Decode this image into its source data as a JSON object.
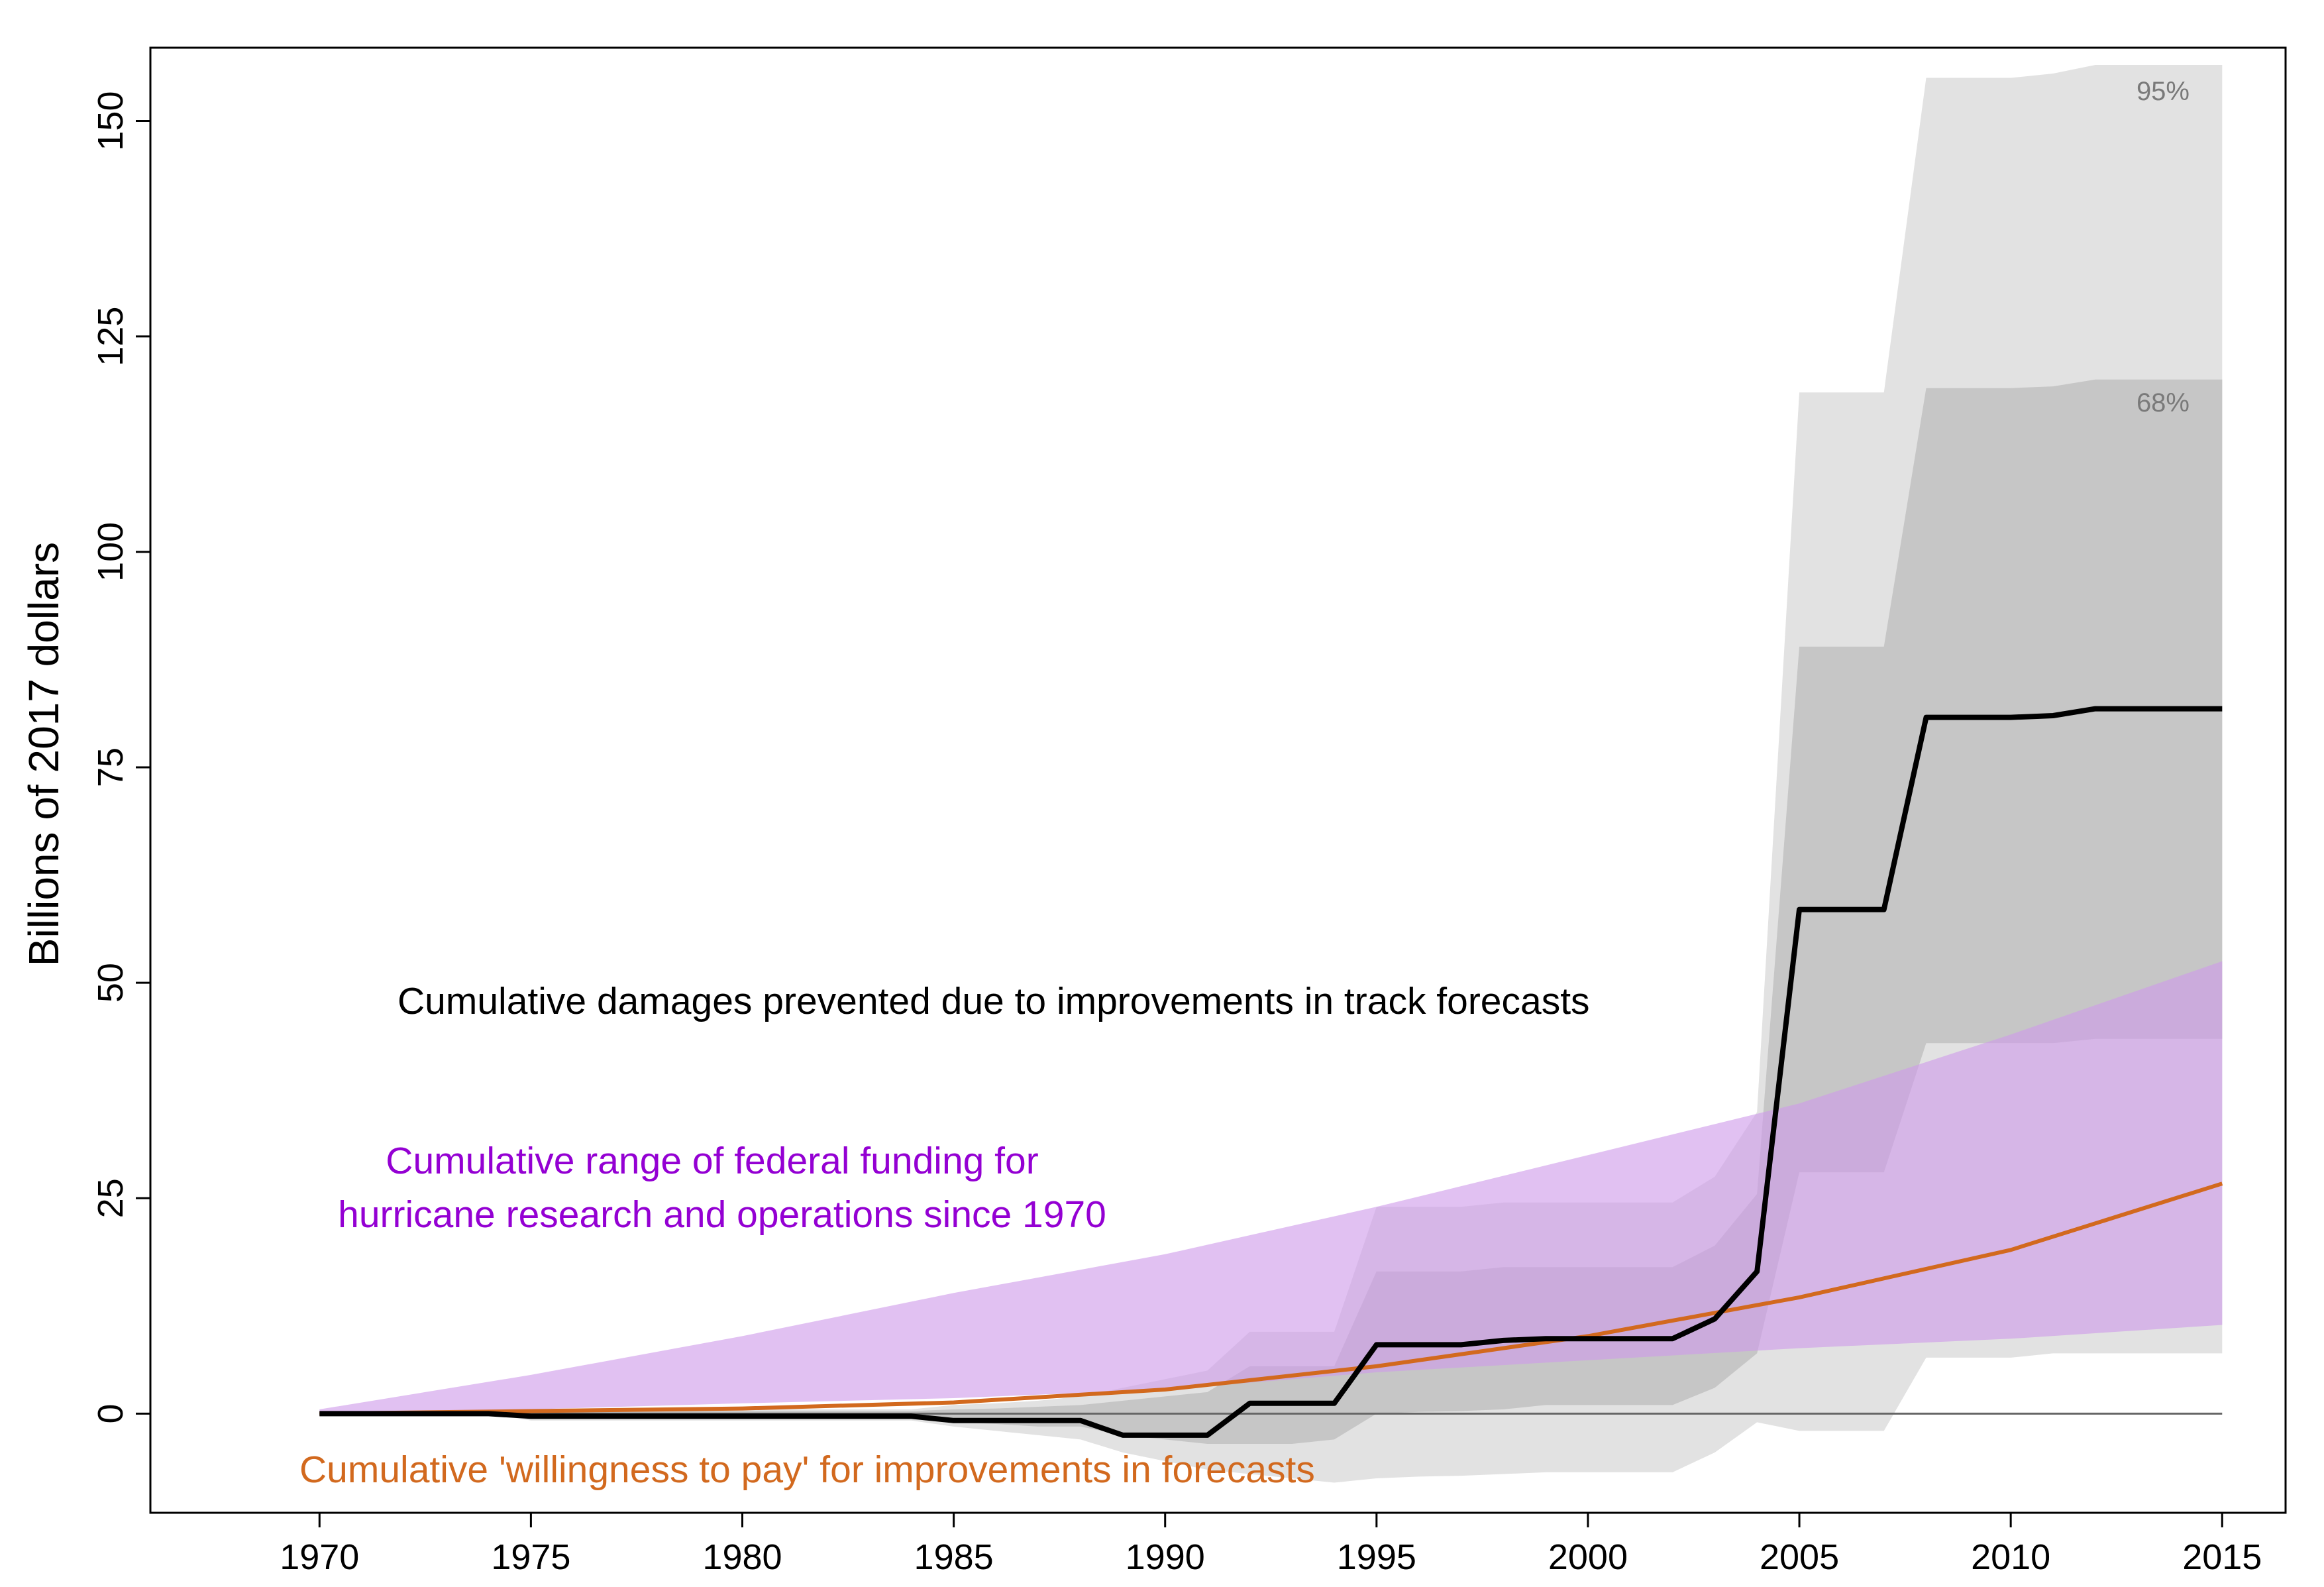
{
  "chart_data": {
    "type": "area",
    "title": "",
    "xlabel": "",
    "ylabel": "Billions of 2017 dollars",
    "xlim": [
      1966,
      2016.5
    ],
    "ylim": [
      -11.5,
      158.5
    ],
    "x_ticks": [
      1970,
      1975,
      1980,
      1985,
      1990,
      1995,
      2000,
      2005,
      2010,
      2015
    ],
    "y_ticks": [
      0,
      25,
      50,
      75,
      100,
      125,
      150
    ],
    "zero_line": true,
    "grid": false,
    "annotations": {
      "damages": "Cumulative damages prevented due to improvements in track forecasts",
      "funding_line1": "Cumulative range of federal funding for",
      "funding_line2": "hurricane research and operations since 1970",
      "willingness": "Cumulative 'willingness to pay' for improvements in forecasts",
      "band95": "95%",
      "band68": "68%"
    },
    "colors": {
      "band95": "#e2e2e2",
      "band68": "#c6c6c6",
      "damages": "#000000",
      "funding": "#cf9bea",
      "funding_text": "#9400d3",
      "willingness": "#d2691e",
      "zero_line": "#666666"
    },
    "series": [
      {
        "name": "95% interval",
        "kind": "band_step",
        "x": [
          1970,
          1971,
          1972,
          1973,
          1974,
          1975,
          1976,
          1977,
          1978,
          1979,
          1980,
          1981,
          1982,
          1983,
          1984,
          1985,
          1986,
          1987,
          1988,
          1989,
          1990,
          1991,
          1992,
          1993,
          1994,
          1995,
          1996,
          1997,
          1998,
          1999,
          2000,
          2001,
          2002,
          2003,
          2004,
          2005,
          2006,
          2007,
          2008,
          2009,
          2010,
          2011,
          2012,
          2013,
          2014,
          2015
        ],
        "lower": [
          0,
          0,
          0,
          0,
          0,
          -0.8,
          -0.8,
          -0.8,
          -0.8,
          -0.8,
          -0.8,
          -0.8,
          -0.8,
          -0.8,
          -0.8,
          -1.5,
          -2,
          -2.5,
          -3,
          -4.5,
          -5.5,
          -6.5,
          -7,
          -7.5,
          -8,
          -7.5,
          -7.3,
          -7.2,
          -7,
          -6.8,
          -6.8,
          -6.8,
          -6.8,
          -4.5,
          -1,
          -2,
          -2,
          -2,
          6.5,
          6.5,
          6.5,
          7,
          7,
          7,
          7,
          7
        ],
        "upper": [
          0,
          0,
          0,
          0,
          0,
          0.5,
          0.5,
          0.5,
          0.5,
          0.5,
          0.5,
          0.5,
          0.5,
          0.5,
          0.5,
          1,
          1.2,
          1.5,
          2,
          3,
          4,
          5,
          9.5,
          9.5,
          9.5,
          24,
          24,
          24,
          24.5,
          24.5,
          24.5,
          24.5,
          24.5,
          27.5,
          35,
          118.5,
          118.5,
          118.5,
          155,
          155,
          155,
          155.5,
          156.5,
          156.5,
          156.5,
          156.5
        ]
      },
      {
        "name": "68% interval",
        "kind": "band_step",
        "x": [
          1970,
          1971,
          1972,
          1973,
          1974,
          1975,
          1976,
          1977,
          1978,
          1979,
          1980,
          1981,
          1982,
          1983,
          1984,
          1985,
          1986,
          1987,
          1988,
          1989,
          1990,
          1991,
          1992,
          1993,
          1994,
          1995,
          1996,
          1997,
          1998,
          1999,
          2000,
          2001,
          2002,
          2003,
          2004,
          2005,
          2006,
          2007,
          2008,
          2009,
          2010,
          2011,
          2012,
          2013,
          2014,
          2015
        ],
        "lower": [
          0,
          0,
          0,
          0,
          0,
          -0.5,
          -0.5,
          -0.5,
          -0.5,
          -0.5,
          -0.5,
          -0.5,
          -0.5,
          -0.5,
          -0.5,
          -1,
          -1.2,
          -1.5,
          -1.5,
          -2.5,
          -3,
          -3.5,
          -3.5,
          -3.5,
          -3,
          0,
          0.2,
          0.3,
          0.5,
          1,
          1,
          1,
          1,
          3,
          7,
          28,
          28,
          28,
          43,
          43,
          43,
          43,
          43.5,
          43.5,
          43.5,
          43.5
        ],
        "upper": [
          0,
          0,
          0,
          0,
          0,
          0.3,
          0.3,
          0.3,
          0.3,
          0.3,
          0.3,
          0.3,
          0.3,
          0.3,
          0.3,
          0.5,
          0.6,
          0.8,
          1,
          1.5,
          2,
          2.5,
          5.5,
          5.5,
          5.5,
          16.5,
          16.5,
          16.5,
          17,
          17,
          17,
          17,
          17,
          19.5,
          25.5,
          89,
          89,
          89,
          119,
          119,
          119,
          119.2,
          120,
          120,
          120,
          120
        ]
      },
      {
        "name": "Cumulative damages prevented",
        "kind": "line",
        "x": [
          1970,
          1971,
          1972,
          1973,
          1974,
          1975,
          1976,
          1977,
          1978,
          1979,
          1980,
          1981,
          1982,
          1983,
          1984,
          1985,
          1986,
          1987,
          1988,
          1989,
          1990,
          1991,
          1992,
          1993,
          1994,
          1995,
          1996,
          1997,
          1998,
          1999,
          2000,
          2001,
          2002,
          2003,
          2004,
          2005,
          2006,
          2007,
          2008,
          2009,
          2010,
          2011,
          2012,
          2013,
          2014,
          2015
        ],
        "values": [
          0,
          0,
          0,
          0,
          0,
          -0.3,
          -0.3,
          -0.3,
          -0.3,
          -0.3,
          -0.3,
          -0.3,
          -0.3,
          -0.3,
          -0.3,
          -0.8,
          -0.8,
          -0.8,
          -0.8,
          -2.5,
          -2.5,
          -2.5,
          1.2,
          1.2,
          1.2,
          8,
          8,
          8,
          8.5,
          8.7,
          8.7,
          8.7,
          8.7,
          11,
          16.5,
          58.5,
          58.5,
          58.5,
          80.8,
          80.8,
          80.8,
          81,
          81.8,
          81.8,
          81.8,
          81.8
        ]
      },
      {
        "name": "Cumulative federal funding range",
        "kind": "band",
        "x": [
          1970,
          1975,
          1980,
          1985,
          1990,
          1995,
          2000,
          2005,
          2010,
          2015
        ],
        "lower": [
          0,
          0.5,
          1.2,
          1.8,
          2.8,
          4.8,
          6.2,
          7.6,
          8.7,
          10.3
        ],
        "upper": [
          0.5,
          4.5,
          9,
          14,
          18.5,
          24,
          30,
          36,
          44,
          52.5
        ]
      },
      {
        "name": "Cumulative willingness to pay",
        "kind": "line",
        "x": [
          1970,
          1975,
          1980,
          1985,
          1990,
          1995,
          2000,
          2005,
          2010,
          2015
        ],
        "values": [
          0,
          0.3,
          0.6,
          1.3,
          2.8,
          5.5,
          9,
          13.5,
          19,
          26.7
        ]
      }
    ]
  }
}
